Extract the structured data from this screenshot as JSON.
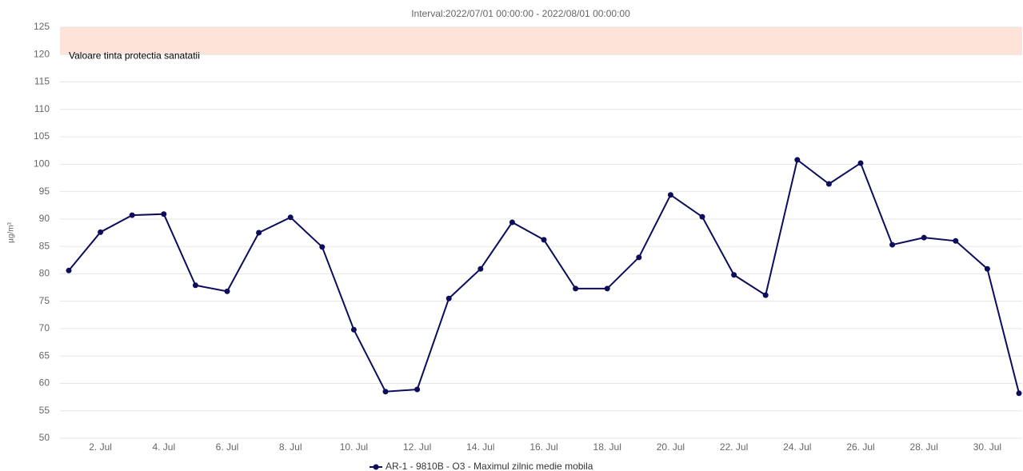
{
  "chart_data": {
    "type": "line",
    "title": "Interval:2022/07/01 00:00:00 - 2022/08/01 00:00:00",
    "y_label": "µg/m³",
    "categories": [
      null,
      "2. Jul",
      null,
      "4. Jul",
      null,
      "6. Jul",
      null,
      "8. Jul",
      null,
      "10. Jul",
      null,
      "12. Jul",
      null,
      "14. Jul",
      null,
      "16. Jul",
      null,
      "18. Jul",
      null,
      "20. Jul",
      null,
      "22. Jul",
      null,
      "24. Jul",
      null,
      "26. Jul",
      null,
      "28. Jul",
      null,
      "30. Jul",
      null
    ],
    "series": [
      {
        "name": "AR-1 - 9810B - O3 - Maximul zilnic medie mobila",
        "color": "#0d0d5c",
        "values": [
          80.6,
          87.6,
          90.7,
          90.9,
          77.9,
          76.8,
          87.5,
          90.3,
          84.9,
          69.8,
          58.5,
          58.9,
          75.5,
          80.9,
          89.4,
          86.2,
          77.3,
          77.3,
          83.0,
          94.4,
          90.4,
          79.8,
          76.1,
          100.8,
          96.4,
          100.2,
          85.3,
          86.6,
          86.0,
          80.9,
          58.2
        ]
      }
    ],
    "ylim": [
      50,
      125
    ],
    "yticks": [
      50,
      55,
      60,
      65,
      70,
      75,
      80,
      85,
      90,
      95,
      100,
      105,
      110,
      115,
      120,
      125
    ],
    "grid": true,
    "bands": [
      {
        "from": 120,
        "to": 125,
        "label": "Valoare tinta protectia sanatatii",
        "color": "#fde3d8"
      }
    ],
    "legend": "bottom"
  }
}
